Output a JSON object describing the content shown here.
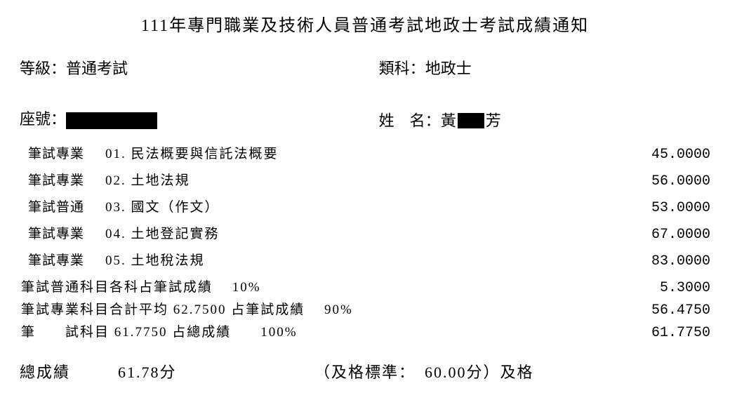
{
  "title": "111年專門職業及技術人員普通考試地政士考試成績通知",
  "header": {
    "grade_label": "等級：",
    "grade_value": "普通考試",
    "category_label": "類科：",
    "category_value": "地政士",
    "seat_label": "座號：",
    "name_label": "姓　名：",
    "name_part1": "黃",
    "name_part2": "芳"
  },
  "subjects": [
    {
      "type": "筆試專業",
      "name": "01. 民法概要與信託法概要",
      "score": "45.0000"
    },
    {
      "type": "筆試專業",
      "name": "02. 土地法規",
      "score": "56.0000"
    },
    {
      "type": "筆試普通",
      "name": "03. 國文（作文）",
      "score": "53.0000"
    },
    {
      "type": "筆試專業",
      "name": "04. 土地登記實務",
      "score": "67.0000"
    },
    {
      "type": "筆試專業",
      "name": "05. 土地稅法規",
      "score": "83.0000"
    }
  ],
  "calc": [
    {
      "text": "筆試普通科目各科占筆試成績　 10%",
      "score": "5.3000"
    },
    {
      "text": "筆試專業科目合計平均 62.7500 占筆試成績　 90%",
      "score": "56.4750"
    },
    {
      "text": "筆　　試科目 61.7750 占總成績　　100%",
      "score": "61.7750"
    }
  ],
  "total": {
    "label": "總成績",
    "score": "61.78分",
    "pass_text": "（及格標準：　60.00分）及格"
  }
}
